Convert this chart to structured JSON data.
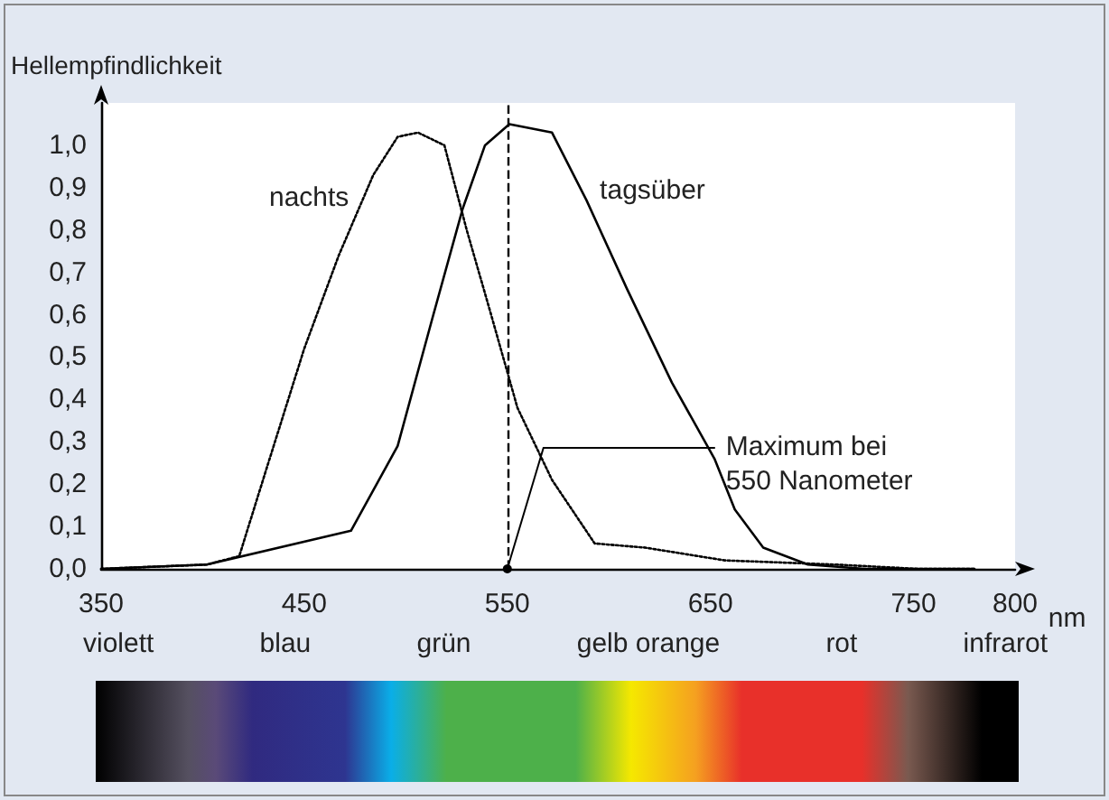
{
  "chart_data": {
    "type": "line",
    "ylabel": "Hellempfindlichkeit",
    "xlabel": "nm",
    "xlim": [
      350,
      800
    ],
    "xticks": [
      350,
      450,
      550,
      650,
      750,
      800
    ],
    "ylim": [
      0,
      1.1
    ],
    "yticks": [
      {
        "value": 0,
        "label": "0,0"
      },
      {
        "value": 0.1,
        "label": "0,1"
      },
      {
        "value": 0.2,
        "label": "0,2"
      },
      {
        "value": 0.3,
        "label": "0,3"
      },
      {
        "value": 0.4,
        "label": "0,4"
      },
      {
        "value": 0.5,
        "label": "0,5"
      },
      {
        "value": 0.6,
        "label": "0,6"
      },
      {
        "value": 0.7,
        "label": "0,7"
      },
      {
        "value": 0.8,
        "label": "0,8"
      },
      {
        "value": 0.9,
        "label": "0,9"
      },
      {
        "value": 1.0,
        "label": "1,0"
      }
    ],
    "marker": "none",
    "series": [
      {
        "name": "nachts",
        "color": "#000000",
        "line_style": "dotted",
        "x": [
          350,
          402,
          418,
          431,
          450,
          467,
          484,
          496,
          506,
          519,
          530,
          542,
          555,
          572,
          593,
          618,
          657,
          712,
          752,
          780
        ],
        "values": [
          0,
          0.01,
          0.03,
          0.23,
          0.52,
          0.74,
          0.93,
          1.02,
          1.03,
          1.0,
          0.8,
          0.6,
          0.38,
          0.21,
          0.06,
          0.05,
          0.02,
          0.01,
          0,
          0
        ]
      },
      {
        "name": "tagsüber",
        "color": "#000000",
        "line_style": "solid",
        "x": [
          350,
          402,
          473,
          496,
          513,
          528,
          539,
          551,
          572,
          589,
          609,
          631,
          652,
          662,
          676,
          698,
          726,
          780
        ],
        "values": [
          0,
          0.01,
          0.09,
          0.29,
          0.59,
          0.85,
          1.0,
          1.05,
          1.03,
          0.87,
          0.66,
          0.44,
          0.26,
          0.14,
          0.05,
          0.01,
          0,
          0
        ]
      }
    ],
    "ref_lines": [
      {
        "axis": "x",
        "value": 550,
        "line_style": "dashed",
        "color": "#000000"
      }
    ],
    "annotations": [
      {
        "text": "Maximum bei\n550 Nanometer",
        "x": 550,
        "y": 0
      },
      "violett",
      "blau",
      "grün",
      "gelb orange",
      "rot",
      "infrarot"
    ]
  }
}
